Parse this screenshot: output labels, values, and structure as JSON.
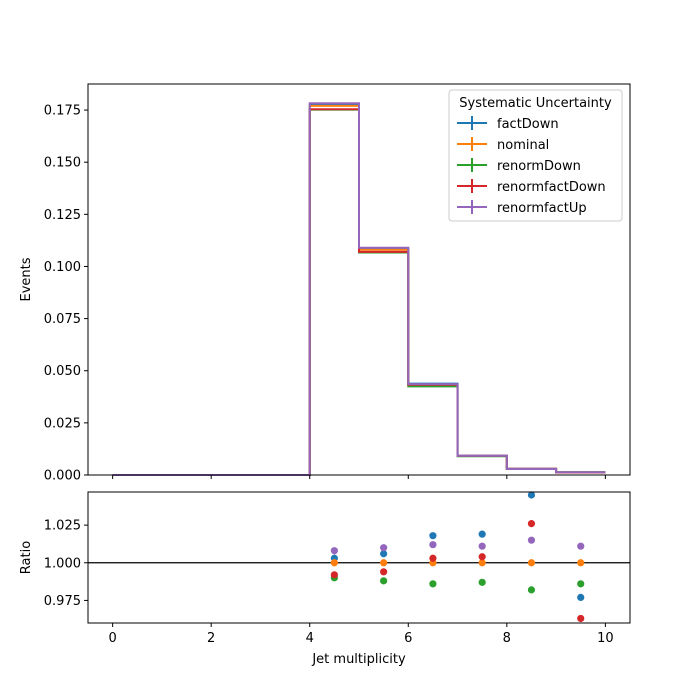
{
  "chart_data": [
    {
      "type": "line",
      "subtype": "step-histogram",
      "ylabel": "Events",
      "xlim": [
        -0.5,
        10.5
      ],
      "ylim": [
        0.0,
        0.1875
      ],
      "xticks": [
        0,
        2,
        4,
        6,
        8,
        10
      ],
      "xtick_labels": [
        "",
        "",
        "",
        "",
        "",
        ""
      ],
      "yticks": [
        0.0,
        0.025,
        0.05,
        0.075,
        0.1,
        0.125,
        0.15,
        0.175
      ],
      "ytick_labels": [
        "0.000",
        "0.025",
        "0.050",
        "0.075",
        "0.100",
        "0.125",
        "0.150",
        "0.175"
      ],
      "bin_edges": [
        0,
        1,
        2,
        3,
        4,
        5,
        6,
        7,
        8,
        9,
        10
      ],
      "grid": false,
      "legend": {
        "title": "Systematic Uncertainty",
        "position": "top-right"
      },
      "series": [
        {
          "name": "factDown",
          "color": "#1f77b4",
          "values": [
            0,
            0,
            0,
            0,
            0.1775,
            0.1086,
            0.0438,
            0.0092,
            0.003,
            0.0013
          ]
        },
        {
          "name": "nominal",
          "color": "#ff7f0e",
          "values": [
            0,
            0,
            0,
            0,
            0.177,
            0.108,
            0.0431,
            0.0091,
            0.0029,
            0.0013
          ]
        },
        {
          "name": "renormDown",
          "color": "#2ca02c",
          "values": [
            0,
            0,
            0,
            0,
            0.1752,
            0.1067,
            0.0425,
            0.009,
            0.0029,
            0.0013
          ]
        },
        {
          "name": "renormfactDown",
          "color": "#d62728",
          "values": [
            0,
            0,
            0,
            0,
            0.1754,
            0.107,
            0.0433,
            0.0092,
            0.003,
            0.0012
          ]
        },
        {
          "name": "renormfactUp",
          "color": "#9467bd",
          "values": [
            0,
            0,
            0,
            0,
            0.1783,
            0.109,
            0.0436,
            0.0092,
            0.0029,
            0.0013
          ]
        }
      ]
    },
    {
      "type": "scatter",
      "xlabel": "Jet multiplicity",
      "ylabel": "Ratio",
      "xlim": [
        -0.5,
        10.5
      ],
      "ylim": [
        0.96,
        1.047
      ],
      "xticks": [
        0,
        2,
        4,
        6,
        8,
        10
      ],
      "xtick_labels": [
        "0",
        "2",
        "4",
        "6",
        "8",
        "10"
      ],
      "yticks": [
        0.975,
        1.0,
        1.025
      ],
      "ytick_labels": [
        "0.975",
        "1.000",
        "1.025"
      ],
      "reference_line": 1.0,
      "x": [
        4.5,
        5.5,
        6.5,
        7.5,
        8.5,
        9.5
      ],
      "series": [
        {
          "name": "factDown",
          "color": "#1f77b4",
          "values": [
            1.003,
            1.006,
            1.018,
            1.019,
            1.045,
            0.977
          ]
        },
        {
          "name": "nominal",
          "color": "#ff7f0e",
          "values": [
            1.0,
            1.0,
            1.0,
            1.0,
            1.0,
            1.0
          ]
        },
        {
          "name": "renormDown",
          "color": "#2ca02c",
          "values": [
            0.99,
            0.988,
            0.986,
            0.987,
            0.982,
            0.986
          ]
        },
        {
          "name": "renormfactDown",
          "color": "#d62728",
          "values": [
            0.992,
            0.994,
            1.003,
            1.004,
            1.026,
            0.963
          ]
        },
        {
          "name": "renormfactUp",
          "color": "#9467bd",
          "values": [
            1.008,
            1.01,
            1.012,
            1.011,
            1.015,
            1.011
          ]
        }
      ]
    }
  ]
}
